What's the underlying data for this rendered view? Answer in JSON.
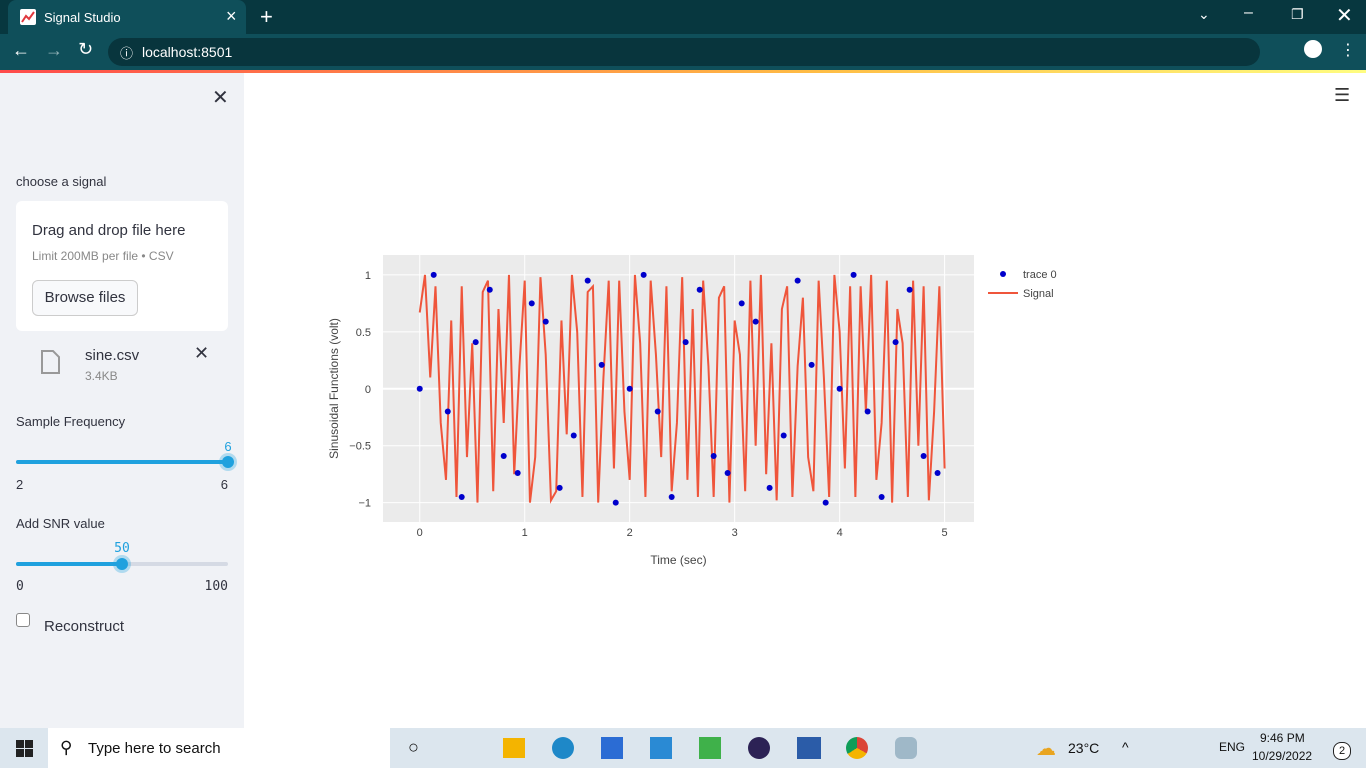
{
  "browser": {
    "tab_title": "Signal Studio",
    "url": "localhost:8501"
  },
  "sidebar": {
    "uploader_label": "choose a signal",
    "drop_text": "Drag and drop file here",
    "limit_text": "Limit 200MB per file • CSV",
    "browse_button": "Browse files",
    "file_name": "sine.csv",
    "file_size": "3.4KB",
    "sliders": [
      {
        "label": "Sample Frequency",
        "value": 6,
        "min": 2,
        "max": 6
      },
      {
        "label": "Add SNR value",
        "value": 50,
        "min": 0,
        "max": 100
      }
    ],
    "checkbox": "Reconstruct"
  },
  "chart_data": {
    "type": "scatter",
    "xlabel": "Time (sec)",
    "ylabel": "Sinusoidal Functions (volt)",
    "xlim": [
      -0.35,
      5.28
    ],
    "ylim": [
      -1.17,
      1.175
    ],
    "xticks": [
      0,
      1,
      2,
      3,
      4,
      5
    ],
    "yticks": [
      {
        "value": -1,
        "label": "−1"
      },
      {
        "value": -0.5,
        "label": "−0.5"
      },
      0,
      0.5,
      1
    ],
    "grid": true,
    "legend": "right",
    "series": [
      {
        "name": "trace 0",
        "mode": "markers",
        "color": "#0000cc",
        "x": [
          0,
          0.133,
          0.267,
          0.4,
          0.533,
          0.667,
          0.8,
          0.933,
          1.067,
          1.2,
          1.333,
          1.467,
          1.6,
          1.733,
          1.867,
          2,
          2.133,
          2.267,
          2.4,
          2.533,
          2.667,
          2.8,
          2.933,
          3.067,
          3.2,
          3.333,
          3.467,
          3.6,
          3.733,
          3.867,
          4,
          4.133,
          4.267,
          4.4,
          4.533,
          4.667,
          4.8,
          4.933
        ],
        "values": [
          0,
          1,
          -0.2,
          -0.95,
          0.41,
          0.87,
          -0.59,
          -0.74,
          0.75,
          0.59,
          -0.87,
          -0.41,
          0.95,
          0.21,
          -1,
          0,
          1,
          -0.2,
          -0.95,
          0.41,
          0.87,
          -0.59,
          -0.74,
          0.75,
          0.59,
          -0.87,
          -0.41,
          0.95,
          0.21,
          -1,
          0,
          1,
          -0.2,
          -0.95,
          0.41,
          0.87,
          -0.59,
          -0.74
        ]
      },
      {
        "name": "Signal",
        "mode": "lines",
        "color": "#ef553b",
        "x": [
          0,
          0.05,
          0.1,
          0.15,
          0.2,
          0.25,
          0.3,
          0.35,
          0.4,
          0.45,
          0.5,
          0.55,
          0.6,
          0.65,
          0.7,
          0.75,
          0.8,
          0.85,
          0.9,
          0.95,
          1,
          1.05,
          1.1,
          1.15,
          1.2,
          1.25,
          1.3,
          1.35,
          1.4,
          1.45,
          1.5,
          1.55,
          1.6,
          1.65,
          1.7,
          1.75,
          1.8,
          1.85,
          1.9,
          1.95,
          2,
          2.05,
          2.1,
          2.15,
          2.2,
          2.25,
          2.3,
          2.35,
          2.4,
          2.45,
          2.5,
          2.55,
          2.6,
          2.65,
          2.7,
          2.75,
          2.8,
          2.85,
          2.9,
          2.95,
          3,
          3.05,
          3.1,
          3.15,
          3.2,
          3.25,
          3.3,
          3.35,
          3.4,
          3.45,
          3.5,
          3.55,
          3.6,
          3.65,
          3.7,
          3.75,
          3.8,
          3.85,
          3.9,
          3.95,
          4,
          4.05,
          4.1,
          4.15,
          4.2,
          4.25,
          4.3,
          4.35,
          4.4,
          4.45,
          4.5,
          4.55,
          4.6,
          4.65,
          4.7,
          4.75,
          4.8,
          4.85,
          4.9,
          4.95,
          5
        ],
        "values": [
          0.67,
          1,
          0.1,
          0.9,
          -0.3,
          -0.8,
          0.6,
          -0.95,
          0.9,
          -0.6,
          0.4,
          -1,
          0.85,
          0.95,
          -0.9,
          0.7,
          -0.3,
          1,
          -0.75,
          0.2,
          0.95,
          -1,
          -0.6,
          0.98,
          0.3,
          -0.98,
          -0.9,
          0.6,
          -0.4,
          1,
          0.5,
          -0.95,
          0.85,
          0.9,
          -1,
          0.1,
          0.95,
          -0.7,
          0.95,
          -0.2,
          -0.8,
          1,
          0.4,
          -0.95,
          0.95,
          0.3,
          -0.6,
          0.9,
          -0.9,
          -0.3,
          0.98,
          -0.8,
          0.7,
          -0.95,
          0.95,
          0.2,
          -0.95,
          0.8,
          0.9,
          -1,
          0.6,
          0.3,
          -0.9,
          0.95,
          -0.5,
          1,
          -0.75,
          0.4,
          -0.98,
          0.7,
          0.9,
          -0.95,
          0.2,
          0.8,
          -0.6,
          -0.9,
          0.95,
          0.1,
          -0.95,
          1,
          0.5,
          -0.7,
          0.9,
          -0.95,
          0.9,
          -0.2,
          1,
          -0.8,
          -0.3,
          0.95,
          -1,
          0.7,
          0.4,
          -0.95,
          0.95,
          -0.5,
          0.9,
          -0.98,
          -0.2,
          0.9,
          -0.7
        ]
      }
    ]
  },
  "taskbar": {
    "search": "Type here to search",
    "weather": "23°C",
    "language": "ENG",
    "time": "9:46 PM",
    "date": "10/29/2022",
    "notifications": "2"
  }
}
